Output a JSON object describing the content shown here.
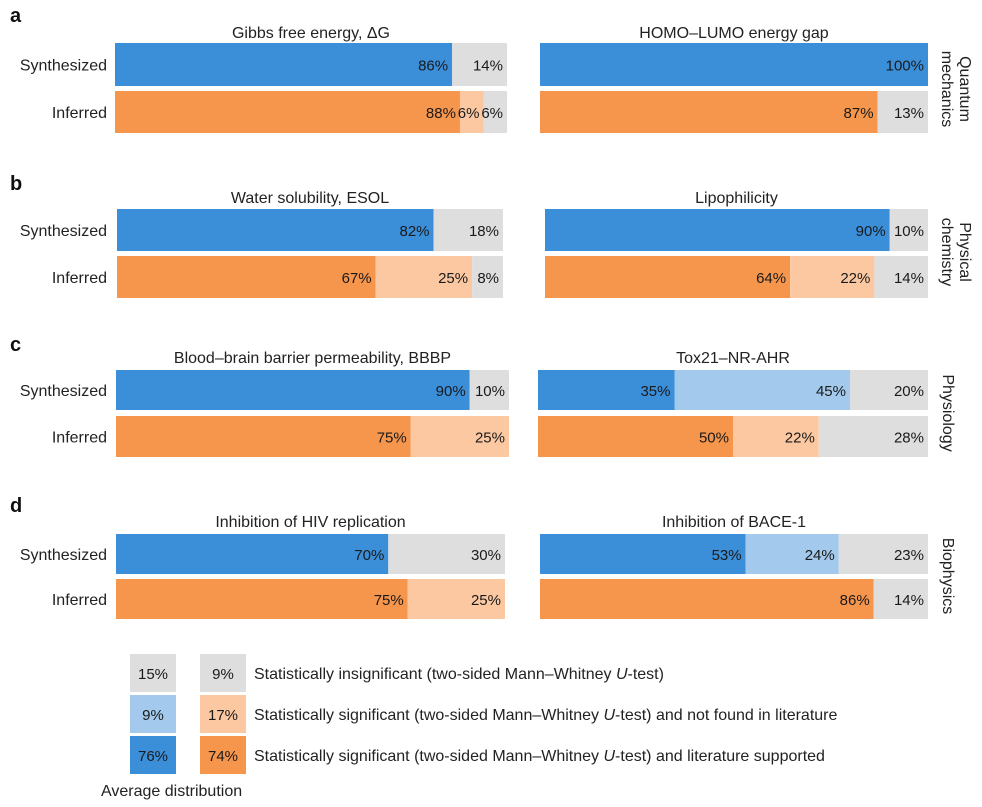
{
  "colors": {
    "blue_literature": "#3b8fd9",
    "blue_novel": "#a3c9ec",
    "orange_literature": "#f6964c",
    "orange_novel": "#fcc8a1",
    "insignificant": "#dedede"
  },
  "legend": {
    "rows": [
      {
        "left_value": "15%",
        "left_color": "#dedede",
        "right_value": "9%",
        "right_color": "#dedede",
        "label_parts": [
          "Statistically insignificant (two-sided Mann–Whitney ",
          "U",
          "-test)"
        ]
      },
      {
        "left_value": "9%",
        "left_color": "#a3c9ec",
        "right_value": "17%",
        "right_color": "#fcc8a1",
        "label_parts": [
          "Statistically significant (two-sided Mann–Whitney ",
          "U",
          "-test) and not found in literature"
        ]
      },
      {
        "left_value": "76%",
        "left_color": "#3b8fd9",
        "right_value": "74%",
        "right_color": "#f6964c",
        "label_parts": [
          "Statistically significant (two-sided Mann–Whitney ",
          "U",
          "-test) and literature supported"
        ]
      }
    ],
    "caption": "Average distribution"
  },
  "chart_data": [
    {
      "type": "stacked-bar-100",
      "panel": "a",
      "title": "Gibbs free energy, ΔG",
      "side_label": "",
      "categories": [
        "Synthesized",
        "Inferred"
      ],
      "segments": [
        [
          {
            "value": 86,
            "label": "86%",
            "class": "literature"
          },
          {
            "value": 14,
            "label": "14%",
            "class": "insignificant"
          }
        ],
        [
          {
            "value": 88,
            "label": "88%",
            "class": "literature"
          },
          {
            "value": 6,
            "label": "6%",
            "class": "novel"
          },
          {
            "value": 6,
            "label": "6%",
            "class": "insignificant"
          }
        ]
      ]
    },
    {
      "type": "stacked-bar-100",
      "panel": "",
      "title": "HOMO–LUMO energy gap",
      "side_label": "Quantum\nmechanics",
      "categories": [
        "Synthesized",
        "Inferred"
      ],
      "segments": [
        [
          {
            "value": 100,
            "label": "100%",
            "class": "literature"
          }
        ],
        [
          {
            "value": 87,
            "label": "87%",
            "class": "literature"
          },
          {
            "value": 13,
            "label": "13%",
            "class": "insignificant"
          }
        ]
      ]
    },
    {
      "type": "stacked-bar-100",
      "panel": "b",
      "title": "Water solubility, ESOL",
      "side_label": "",
      "categories": [
        "Synthesized",
        "Inferred"
      ],
      "segments": [
        [
          {
            "value": 82,
            "label": "82%",
            "class": "literature"
          },
          {
            "value": 18,
            "label": "18%",
            "class": "insignificant"
          }
        ],
        [
          {
            "value": 67,
            "label": "67%",
            "class": "literature"
          },
          {
            "value": 25,
            "label": "25%",
            "class": "novel"
          },
          {
            "value": 8,
            "label": "8%",
            "class": "insignificant"
          }
        ]
      ]
    },
    {
      "type": "stacked-bar-100",
      "panel": "",
      "title": "Lipophilicity",
      "side_label": "Physical\nchemistry",
      "categories": [
        "Synthesized",
        "Inferred"
      ],
      "segments": [
        [
          {
            "value": 90,
            "label": "90%",
            "class": "literature"
          },
          {
            "value": 10,
            "label": "10%",
            "class": "insignificant"
          }
        ],
        [
          {
            "value": 64,
            "label": "64%",
            "class": "literature"
          },
          {
            "value": 22,
            "label": "22%",
            "class": "novel"
          },
          {
            "value": 14,
            "label": "14%",
            "class": "insignificant"
          }
        ]
      ]
    },
    {
      "type": "stacked-bar-100",
      "panel": "c",
      "title": "Blood–brain barrier permeability, BBBP",
      "side_label": "",
      "categories": [
        "Synthesized",
        "Inferred"
      ],
      "segments": [
        [
          {
            "value": 90,
            "label": "90%",
            "class": "literature"
          },
          {
            "value": 10,
            "label": "10%",
            "class": "insignificant"
          }
        ],
        [
          {
            "value": 75,
            "label": "75%",
            "class": "literature"
          },
          {
            "value": 25,
            "label": "25%",
            "class": "novel"
          }
        ]
      ]
    },
    {
      "type": "stacked-bar-100",
      "panel": "",
      "title": "Tox21–NR-AHR",
      "side_label": "Physiology",
      "categories": [
        "Synthesized",
        "Inferred"
      ],
      "segments": [
        [
          {
            "value": 35,
            "label": "35%",
            "class": "literature"
          },
          {
            "value": 45,
            "label": "45%",
            "class": "novel"
          },
          {
            "value": 20,
            "label": "20%",
            "class": "insignificant"
          }
        ],
        [
          {
            "value": 50,
            "label": "50%",
            "class": "literature"
          },
          {
            "value": 22,
            "label": "22%",
            "class": "novel"
          },
          {
            "value": 28,
            "label": "28%",
            "class": "insignificant"
          }
        ]
      ]
    },
    {
      "type": "stacked-bar-100",
      "panel": "d",
      "title": "Inhibition of HIV replication",
      "side_label": "",
      "categories": [
        "Synthesized",
        "Inferred"
      ],
      "segments": [
        [
          {
            "value": 70,
            "label": "70%",
            "class": "literature"
          },
          {
            "value": 30,
            "label": "30%",
            "class": "insignificant"
          }
        ],
        [
          {
            "value": 75,
            "label": "75%",
            "class": "literature"
          },
          {
            "value": 25,
            "label": "25%",
            "class": "novel"
          }
        ]
      ]
    },
    {
      "type": "stacked-bar-100",
      "panel": "",
      "title": "Inhibition of BACE-1",
      "side_label": "Biophysics",
      "categories": [
        "Synthesized",
        "Inferred"
      ],
      "segments": [
        [
          {
            "value": 53,
            "label": "53%",
            "class": "literature"
          },
          {
            "value": 24,
            "label": "24%",
            "class": "novel"
          },
          {
            "value": 23,
            "label": "23%",
            "class": "insignificant"
          }
        ],
        [
          {
            "value": 86,
            "label": "86%",
            "class": "literature"
          },
          {
            "value": 14,
            "label": "14%",
            "class": "insignificant"
          }
        ]
      ]
    }
  ]
}
